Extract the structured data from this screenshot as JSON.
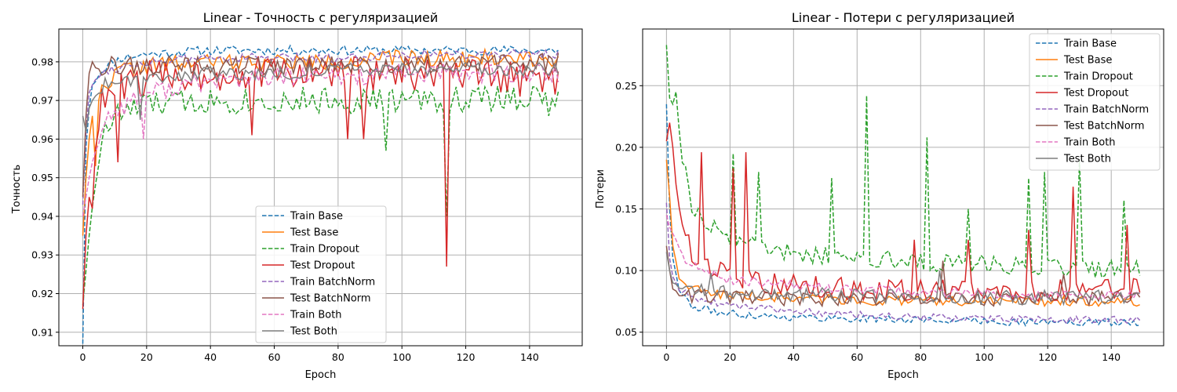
{
  "chart_data": [
    {
      "type": "line",
      "title": "Linear - Точность с регуляризацией",
      "xlabel": "Epoch",
      "ylabel": "Точность",
      "xlim": [
        -7.5,
        156.5
      ],
      "ylim": [
        0.9065,
        0.9885
      ],
      "xticks": [
        0,
        20,
        40,
        60,
        80,
        100,
        120,
        140
      ],
      "yticks": [
        0.91,
        0.92,
        0.93,
        0.94,
        0.95,
        0.96,
        0.97,
        0.98
      ],
      "ytick_labels": [
        "0.91",
        "0.92",
        "0.93",
        "0.94",
        "0.95",
        "0.96",
        "0.97",
        "0.98"
      ],
      "grid": true,
      "legend_position": "lower-center",
      "n_epochs": 150,
      "series": [
        {
          "name": "Train Base",
          "color": "#1f77b4",
          "dash": "dashed",
          "anchors": [
            [
              0,
              0.907
            ],
            [
              1,
              0.958
            ],
            [
              2,
              0.968
            ],
            [
              3,
              0.974
            ],
            [
              5,
              0.977
            ],
            [
              8,
              0.979
            ],
            [
              12,
              0.981
            ],
            [
              20,
              0.982
            ],
            [
              40,
              0.983
            ],
            [
              60,
              0.983
            ],
            [
              80,
              0.983
            ],
            [
              100,
              0.983
            ],
            [
              149,
              0.983
            ]
          ],
          "noise": 0.0012,
          "dips": [],
          "seed": 11
        },
        {
          "name": "Test Base",
          "color": "#ff7f0e",
          "dash": "solid",
          "anchors": [
            [
              0,
              0.935
            ],
            [
              1,
              0.95
            ],
            [
              2,
              0.96
            ],
            [
              3,
              0.966
            ],
            [
              5,
              0.971
            ],
            [
              8,
              0.975
            ],
            [
              12,
              0.978
            ],
            [
              20,
              0.979
            ],
            [
              40,
              0.98
            ],
            [
              60,
              0.98
            ],
            [
              80,
              0.98
            ],
            [
              100,
              0.981
            ],
            [
              149,
              0.981
            ]
          ],
          "noise": 0.0022,
          "dips": [
            [
              4,
              0.953
            ]
          ],
          "seed": 22
        },
        {
          "name": "Train Dropout",
          "color": "#2ca02c",
          "dash": "dashed",
          "anchors": [
            [
              0,
              0.917
            ],
            [
              2,
              0.935
            ],
            [
              4,
              0.95
            ],
            [
              6,
              0.96
            ],
            [
              10,
              0.966
            ],
            [
              20,
              0.969
            ],
            [
              40,
              0.97
            ],
            [
              60,
              0.97
            ],
            [
              80,
              0.97
            ],
            [
              100,
              0.97
            ],
            [
              149,
              0.971
            ]
          ],
          "noise": 0.0035,
          "dips": [
            [
              95,
              0.957
            ],
            [
              114,
              0.94
            ],
            [
              146,
              0.966
            ]
          ],
          "seed": 33
        },
        {
          "name": "Test Dropout",
          "color": "#d62728",
          "dash": "solid",
          "anchors": [
            [
              0,
              0.916
            ],
            [
              1,
              0.935
            ],
            [
              2,
              0.945
            ],
            [
              3,
              0.942
            ],
            [
              4,
              0.96
            ],
            [
              6,
              0.969
            ],
            [
              10,
              0.973
            ],
            [
              20,
              0.976
            ],
            [
              40,
              0.977
            ],
            [
              60,
              0.977
            ],
            [
              80,
              0.977
            ],
            [
              100,
              0.977
            ],
            [
              149,
              0.975
            ]
          ],
          "noise": 0.0045,
          "dips": [
            [
              11,
              0.954
            ],
            [
              53,
              0.961
            ],
            [
              83,
              0.96
            ],
            [
              88,
              0.96
            ],
            [
              114,
              0.927
            ]
          ],
          "seed": 44
        },
        {
          "name": "Train BatchNorm",
          "color": "#9467bd",
          "dash": "dashed",
          "anchors": [
            [
              0,
              0.943
            ],
            [
              1,
              0.962
            ],
            [
              2,
              0.972
            ],
            [
              4,
              0.976
            ],
            [
              8,
              0.978
            ],
            [
              20,
              0.98
            ],
            [
              40,
              0.981
            ],
            [
              60,
              0.981
            ],
            [
              80,
              0.981
            ],
            [
              100,
              0.982
            ],
            [
              149,
              0.982
            ]
          ],
          "noise": 0.0012,
          "dips": [],
          "seed": 55
        },
        {
          "name": "Test BatchNorm",
          "color": "#8c564b",
          "dash": "solid",
          "anchors": [
            [
              0,
              0.945
            ],
            [
              1,
              0.966
            ],
            [
              2,
              0.977
            ],
            [
              3,
              0.98
            ],
            [
              6,
              0.979
            ],
            [
              20,
              0.979
            ],
            [
              40,
              0.979
            ],
            [
              60,
              0.979
            ],
            [
              80,
              0.979
            ],
            [
              100,
              0.979
            ],
            [
              149,
              0.98
            ]
          ],
          "noise": 0.0025,
          "dips": [
            [
              42,
              0.975
            ]
          ],
          "seed": 66
        },
        {
          "name": "Train Both",
          "color": "#e377c2",
          "dash": "dashed",
          "anchors": [
            [
              0,
              0.94
            ],
            [
              2,
              0.95
            ],
            [
              4,
              0.958
            ],
            [
              8,
              0.966
            ],
            [
              15,
              0.97
            ],
            [
              20,
              0.972
            ],
            [
              40,
              0.975
            ],
            [
              60,
              0.976
            ],
            [
              80,
              0.976
            ],
            [
              100,
              0.977
            ],
            [
              149,
              0.977
            ]
          ],
          "noise": 0.0025,
          "dips": [
            [
              19,
              0.96
            ]
          ],
          "seed": 77
        },
        {
          "name": "Test Both",
          "color": "#7f7f7f",
          "dash": "solid",
          "anchors": [
            [
              0,
              0.966
            ],
            [
              1,
              0.962
            ],
            [
              2,
              0.968
            ],
            [
              4,
              0.972
            ],
            [
              8,
              0.975
            ],
            [
              20,
              0.976
            ],
            [
              40,
              0.977
            ],
            [
              60,
              0.977
            ],
            [
              80,
              0.978
            ],
            [
              100,
              0.978
            ],
            [
              149,
              0.978
            ]
          ],
          "noise": 0.0018,
          "dips": [
            [
              18,
              0.965
            ]
          ],
          "seed": 88
        }
      ]
    },
    {
      "type": "line",
      "title": "Linear - Потери с регуляризацией",
      "xlabel": "Epoch",
      "ylabel": "Потери",
      "xlim": [
        -7.5,
        156.5
      ],
      "ylim": [
        0.039,
        0.296
      ],
      "xticks": [
        0,
        20,
        40,
        60,
        80,
        100,
        120,
        140
      ],
      "yticks": [
        0.05,
        0.1,
        0.15,
        0.2,
        0.25
      ],
      "ytick_labels": [
        "0.05",
        "0.10",
        "0.15",
        "0.20",
        "0.25"
      ],
      "grid": true,
      "legend_position": "top-right",
      "n_epochs": 150,
      "series": [
        {
          "name": "Train Base",
          "color": "#1f77b4",
          "dash": "dashed",
          "anchors": [
            [
              0,
              0.235
            ],
            [
              1,
              0.15
            ],
            [
              2,
              0.11
            ],
            [
              4,
              0.085
            ],
            [
              8,
              0.07
            ],
            [
              20,
              0.065
            ],
            [
              40,
              0.062
            ],
            [
              60,
              0.061
            ],
            [
              80,
              0.06
            ],
            [
              100,
              0.059
            ],
            [
              120,
              0.058
            ],
            [
              149,
              0.058
            ]
          ],
          "noise": 0.003,
          "dips": [],
          "seed": 111
        },
        {
          "name": "Test Base",
          "color": "#ff7f0e",
          "dash": "solid",
          "anchors": [
            [
              0,
              0.19
            ],
            [
              1,
              0.16
            ],
            [
              2,
              0.12
            ],
            [
              4,
              0.095
            ],
            [
              8,
              0.085
            ],
            [
              20,
              0.08
            ],
            [
              40,
              0.078
            ],
            [
              60,
              0.076
            ],
            [
              80,
              0.075
            ],
            [
              100,
              0.075
            ],
            [
              120,
              0.075
            ],
            [
              149,
              0.075
            ]
          ],
          "noise": 0.004,
          "dips": [],
          "seed": 122
        },
        {
          "name": "Train Dropout",
          "color": "#2ca02c",
          "dash": "dashed",
          "anchors": [
            [
              0,
              0.283
            ],
            [
              1,
              0.24
            ],
            [
              2,
              0.235
            ],
            [
              3,
              0.245
            ],
            [
              5,
              0.19
            ],
            [
              8,
              0.155
            ],
            [
              12,
              0.14
            ],
            [
              20,
              0.128
            ],
            [
              30,
              0.12
            ],
            [
              40,
              0.115
            ],
            [
              60,
              0.11
            ],
            [
              80,
              0.108
            ],
            [
              100,
              0.105
            ],
            [
              120,
              0.103
            ],
            [
              149,
              0.1
            ]
          ],
          "noise": 0.008,
          "dips": [
            [
              21,
              0.195
            ],
            [
              29,
              0.18
            ],
            [
              52,
              0.175
            ],
            [
              63,
              0.242
            ],
            [
              82,
              0.208
            ],
            [
              95,
              0.15
            ],
            [
              114,
              0.175
            ],
            [
              119,
              0.18
            ],
            [
              130,
              0.19
            ],
            [
              144,
              0.157
            ]
          ],
          "seed": 133
        },
        {
          "name": "Test Dropout",
          "color": "#d62728",
          "dash": "solid",
          "anchors": [
            [
              0,
              0.205
            ],
            [
              1,
              0.22
            ],
            [
              2,
              0.2
            ],
            [
              3,
              0.17
            ],
            [
              5,
              0.14
            ],
            [
              8,
              0.11
            ],
            [
              15,
              0.1
            ],
            [
              30,
              0.09
            ],
            [
              60,
              0.085
            ],
            [
              100,
              0.083
            ],
            [
              149,
              0.085
            ]
          ],
          "noise": 0.009,
          "dips": [
            [
              11,
              0.196
            ],
            [
              21,
              0.183
            ],
            [
              25,
              0.196
            ],
            [
              78,
              0.125
            ],
            [
              95,
              0.125
            ],
            [
              114,
              0.133
            ],
            [
              128,
              0.168
            ],
            [
              145,
              0.137
            ]
          ],
          "seed": 144
        },
        {
          "name": "Train BatchNorm",
          "color": "#9467bd",
          "dash": "dashed",
          "anchors": [
            [
              0,
              0.155
            ],
            [
              1,
              0.11
            ],
            [
              2,
              0.095
            ],
            [
              4,
              0.085
            ],
            [
              8,
              0.078
            ],
            [
              20,
              0.072
            ],
            [
              40,
              0.067
            ],
            [
              60,
              0.064
            ],
            [
              80,
              0.062
            ],
            [
              100,
              0.061
            ],
            [
              120,
              0.06
            ],
            [
              149,
              0.06
            ]
          ],
          "noise": 0.003,
          "dips": [],
          "seed": 155
        },
        {
          "name": "Test BatchNorm",
          "color": "#8c564b",
          "dash": "solid",
          "anchors": [
            [
              0,
              0.12
            ],
            [
              1,
              0.1
            ],
            [
              2,
              0.085
            ],
            [
              4,
              0.082
            ],
            [
              8,
              0.08
            ],
            [
              20,
              0.078
            ],
            [
              40,
              0.077
            ],
            [
              60,
              0.077
            ],
            [
              80,
              0.077
            ],
            [
              100,
              0.077
            ],
            [
              149,
              0.078
            ]
          ],
          "noise": 0.006,
          "dips": [
            [
              87,
              0.108
            ],
            [
              125,
              0.097
            ]
          ],
          "seed": 166
        },
        {
          "name": "Train Both",
          "color": "#e377c2",
          "dash": "dashed",
          "anchors": [
            [
              0,
              0.145
            ],
            [
              1,
              0.135
            ],
            [
              3,
              0.125
            ],
            [
              6,
              0.11
            ],
            [
              10,
              0.1
            ],
            [
              20,
              0.093
            ],
            [
              40,
              0.088
            ],
            [
              60,
              0.085
            ],
            [
              80,
              0.083
            ],
            [
              100,
              0.081
            ],
            [
              120,
              0.08
            ],
            [
              149,
              0.08
            ]
          ],
          "noise": 0.004,
          "dips": [],
          "seed": 177
        },
        {
          "name": "Test Both",
          "color": "#7f7f7f",
          "dash": "solid",
          "anchors": [
            [
              0,
              0.115
            ],
            [
              1,
              0.1
            ],
            [
              2,
              0.09
            ],
            [
              4,
              0.088
            ],
            [
              8,
              0.085
            ],
            [
              20,
              0.082
            ],
            [
              40,
              0.08
            ],
            [
              60,
              0.08
            ],
            [
              80,
              0.079
            ],
            [
              100,
              0.078
            ],
            [
              149,
              0.079
            ]
          ],
          "noise": 0.006,
          "dips": [
            [
              14,
              0.098
            ],
            [
              86,
              0.1
            ]
          ],
          "seed": 188
        }
      ]
    }
  ]
}
